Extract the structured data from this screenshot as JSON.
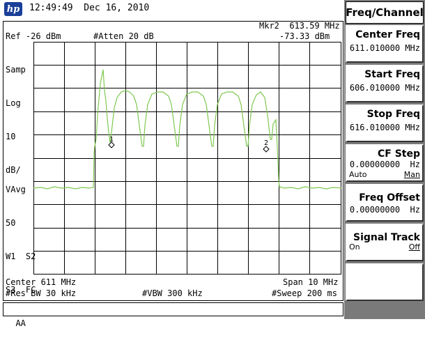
{
  "header": {
    "logo": "hp",
    "timestamp": "12:49:49  Dec 16, 2010"
  },
  "display": {
    "marker_label": "Mkr2  613.59 MHz",
    "marker_amp": "-73.33 dBm",
    "ref": "Ref -26 dBm",
    "atten": "#Atten 20 dB",
    "left_params": [
      "Samp",
      "Log",
      "10",
      "dB/"
    ],
    "avg_params": [
      "VAvg",
      "50",
      "W1  S2",
      "S3  FC",
      "  AA"
    ],
    "center": "Center 611 MHz",
    "span": "Span 10 MHz",
    "rbw": "#Res BW 30 kHz",
    "vbw": "#VBW 300 kHz",
    "sweep": "#Sweep 200 ms",
    "marker1_num": "1",
    "marker2_num": "2",
    "trace_color": "#7ec850"
  },
  "menu": {
    "title": "Freq/Channel",
    "keys": [
      {
        "label": "Center Freq",
        "value": "611.010000 MHz"
      },
      {
        "label": "Start Freq",
        "value": "606.010000 MHz"
      },
      {
        "label": "Stop Freq",
        "value": "616.010000 MHz"
      },
      {
        "label": "CF Step",
        "value": "0.00000000  Hz",
        "opt1": "Auto",
        "opt2": "Man"
      },
      {
        "label": "Freq Offset",
        "value": "0.00000000  Hz"
      },
      {
        "label": "Signal Track",
        "opt1": "On",
        "opt2": "Off"
      },
      {
        "label": ""
      }
    ]
  }
}
